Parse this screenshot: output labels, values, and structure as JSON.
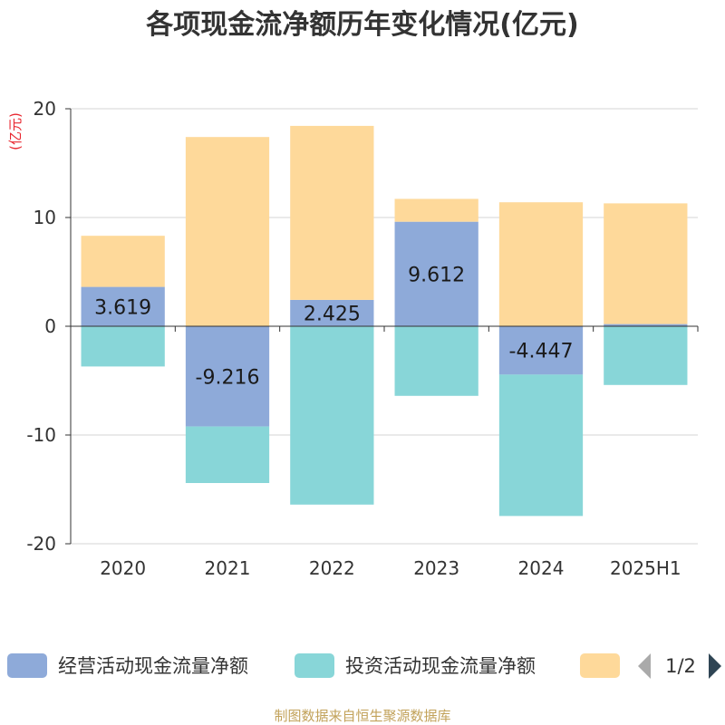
{
  "chart_data": {
    "type": "bar",
    "stacked": true,
    "title": "各项现金流净额历年变化情况(亿元)",
    "ylabel": "(亿元)",
    "ylim": [
      -20,
      20
    ],
    "yticks": [
      20,
      10,
      0,
      -10,
      -20
    ],
    "grid": true,
    "categories": [
      "2020",
      "2021",
      "2022",
      "2023",
      "2024",
      "2025H1"
    ],
    "series": [
      {
        "name": "经营活动现金流量净额",
        "color": "#8eaad9",
        "values": [
          3.619,
          -9.216,
          2.425,
          9.612,
          -4.447,
          0.2
        ],
        "labels": [
          "3.619",
          "-9.216",
          "2.425",
          "9.612",
          "-4.447",
          ""
        ]
      },
      {
        "name": "投资活动现金流量净额",
        "color": "#88d6d8",
        "values": [
          -3.7,
          -5.2,
          -16.4,
          -6.4,
          -13.0,
          -5.4
        ]
      },
      {
        "name": "",
        "color": "#fed99a",
        "values": [
          4.7,
          17.4,
          16.0,
          2.1,
          11.4,
          11.1
        ]
      }
    ],
    "legend_position": "bottom",
    "legend_page": "1/2"
  },
  "source": "制图数据来自恒生聚源数据库"
}
